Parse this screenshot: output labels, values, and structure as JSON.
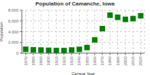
{
  "chart_data": {
    "type": "scatter",
    "title": "Population of Camanche, Iowa",
    "xlabel": "Census Year",
    "ylabel": "Population",
    "x": [
      1870,
      1880,
      1890,
      1900,
      1910,
      1920,
      1930,
      1940,
      1950,
      1960,
      1970,
      1980,
      1990,
      2000,
      2010,
      2020
    ],
    "values": [
      733,
      621,
      584,
      536,
      492,
      484,
      591,
      714,
      1048,
      2475,
      4576,
      7076,
      6680,
      6294,
      6430,
      6968
    ],
    "color": "#007f00",
    "marker": "square",
    "xlim": [
      1865,
      2025
    ],
    "xticks": [
      1870,
      1880,
      1890,
      1900,
      1910,
      1920,
      1930,
      1940,
      1950,
      1960,
      1970,
      1980,
      1990,
      2000,
      2010,
      2020
    ],
    "ylim": [
      0,
      8000
    ],
    "yticks": [
      0,
      {
        "value": 2000,
        "label": "2,000"
      },
      {
        "value": 4000,
        "label": "4,000"
      },
      {
        "value": 6000,
        "label": "6,000"
      },
      {
        "value": 8000,
        "label": "8,000"
      }
    ],
    "grid": true
  }
}
